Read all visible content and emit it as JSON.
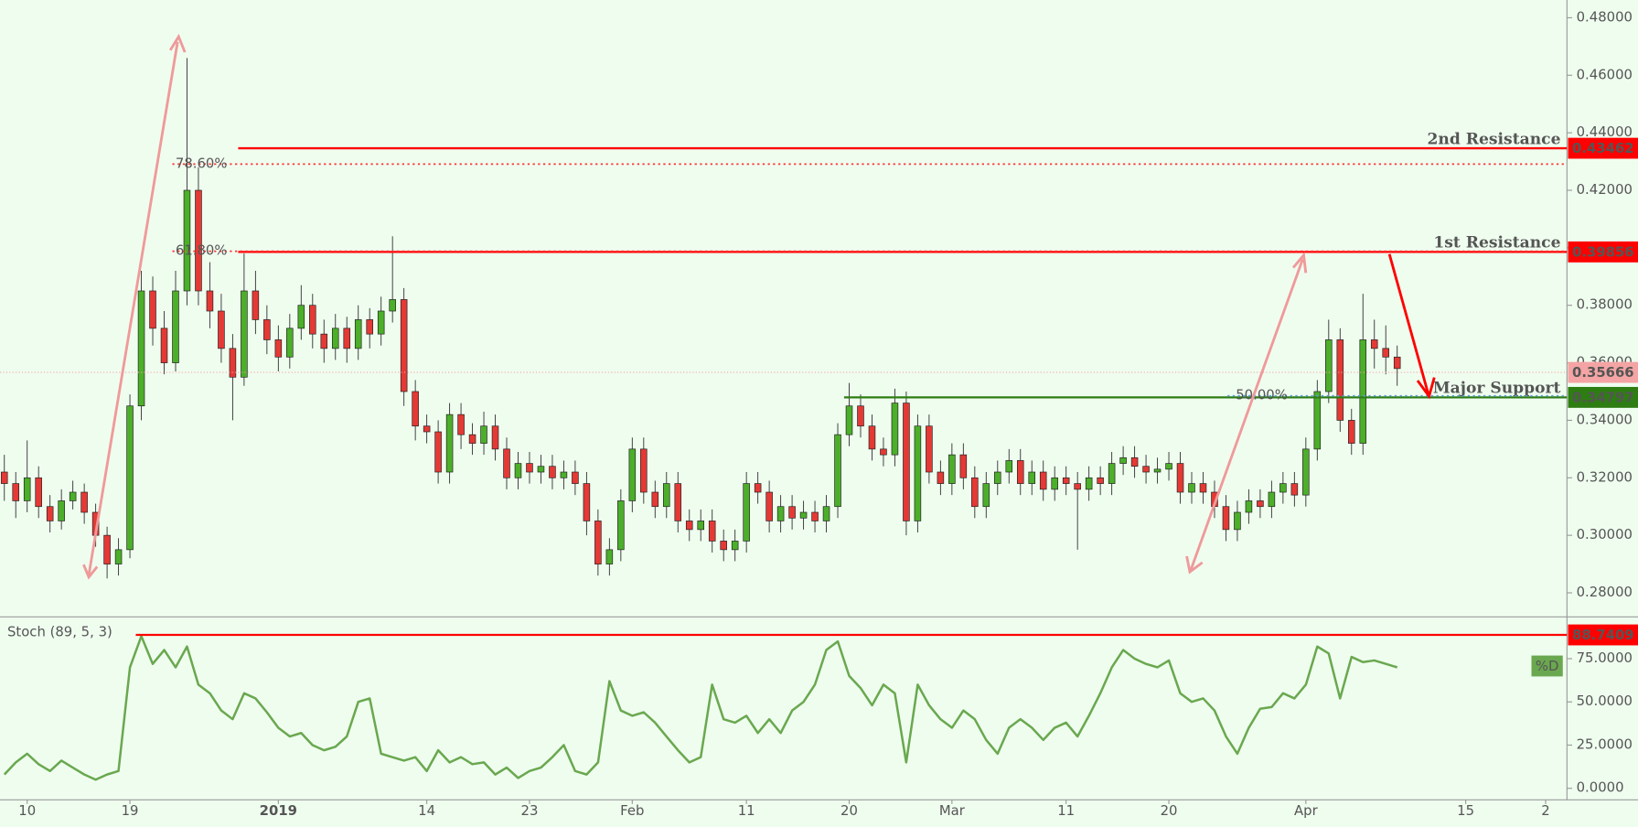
{
  "chart_data": [
    {
      "type": "candlestick",
      "x": [
        -2,
        -1,
        0,
        1,
        2,
        3,
        4,
        5,
        6,
        7,
        8,
        9,
        10,
        11,
        12,
        13,
        14,
        15,
        16,
        17,
        18,
        19,
        20,
        21,
        22,
        23,
        24,
        25,
        26,
        27,
        28,
        29,
        30,
        31,
        32,
        33,
        34,
        35,
        36,
        37,
        38,
        39,
        40,
        41,
        42,
        43,
        44,
        45,
        46,
        47,
        48,
        49,
        50,
        51,
        52,
        53,
        54,
        55,
        56,
        57,
        58,
        59,
        60,
        61,
        62,
        63,
        64,
        65,
        66,
        67,
        68,
        69,
        70,
        71,
        72,
        73,
        74,
        75,
        76,
        77,
        78,
        79,
        80,
        81,
        82,
        83,
        84,
        85,
        86,
        87,
        88,
        89,
        90,
        91,
        92,
        93,
        94,
        95,
        96,
        97,
        98,
        99,
        100,
        101,
        102,
        103,
        104,
        105,
        106,
        107,
        108,
        109,
        110,
        111,
        112,
        113,
        114,
        115,
        116,
        117,
        118,
        119,
        120
      ],
      "candles": [
        [
          0.322,
          0.328,
          0.312,
          0.318
        ],
        [
          0.318,
          0.322,
          0.306,
          0.312
        ],
        [
          0.312,
          0.333,
          0.308,
          0.32
        ],
        [
          0.32,
          0.324,
          0.306,
          0.31
        ],
        [
          0.31,
          0.314,
          0.301,
          0.305
        ],
        [
          0.305,
          0.316,
          0.302,
          0.312
        ],
        [
          0.312,
          0.319,
          0.309,
          0.315
        ],
        [
          0.315,
          0.318,
          0.304,
          0.308
        ],
        [
          0.308,
          0.311,
          0.296,
          0.3
        ],
        [
          0.3,
          0.303,
          0.285,
          0.29
        ],
        [
          0.29,
          0.299,
          0.286,
          0.295
        ],
        [
          0.295,
          0.349,
          0.292,
          0.345
        ],
        [
          0.345,
          0.392,
          0.34,
          0.385
        ],
        [
          0.385,
          0.39,
          0.366,
          0.372
        ],
        [
          0.372,
          0.378,
          0.356,
          0.36
        ],
        [
          0.36,
          0.392,
          0.357,
          0.385
        ],
        [
          0.385,
          0.466,
          0.38,
          0.42
        ],
        [
          0.42,
          0.428,
          0.38,
          0.385
        ],
        [
          0.385,
          0.395,
          0.372,
          0.378
        ],
        [
          0.378,
          0.384,
          0.36,
          0.365
        ],
        [
          0.365,
          0.37,
          0.34,
          0.355
        ],
        [
          0.355,
          0.398,
          0.352,
          0.385
        ],
        [
          0.385,
          0.392,
          0.37,
          0.375
        ],
        [
          0.375,
          0.38,
          0.363,
          0.368
        ],
        [
          0.368,
          0.373,
          0.357,
          0.362
        ],
        [
          0.362,
          0.377,
          0.358,
          0.372
        ],
        [
          0.372,
          0.387,
          0.368,
          0.38
        ],
        [
          0.38,
          0.384,
          0.365,
          0.37
        ],
        [
          0.37,
          0.375,
          0.36,
          0.365
        ],
        [
          0.365,
          0.377,
          0.361,
          0.372
        ],
        [
          0.372,
          0.376,
          0.36,
          0.365
        ],
        [
          0.365,
          0.38,
          0.361,
          0.375
        ],
        [
          0.375,
          0.379,
          0.365,
          0.37
        ],
        [
          0.37,
          0.383,
          0.366,
          0.378
        ],
        [
          0.378,
          0.404,
          0.374,
          0.382
        ],
        [
          0.382,
          0.386,
          0.345,
          0.35
        ],
        [
          0.35,
          0.354,
          0.333,
          0.338
        ],
        [
          0.338,
          0.342,
          0.332,
          0.336
        ],
        [
          0.336,
          0.34,
          0.318,
          0.322
        ],
        [
          0.322,
          0.346,
          0.318,
          0.342
        ],
        [
          0.342,
          0.346,
          0.33,
          0.335
        ],
        [
          0.335,
          0.339,
          0.328,
          0.332
        ],
        [
          0.332,
          0.343,
          0.328,
          0.338
        ],
        [
          0.338,
          0.342,
          0.326,
          0.33
        ],
        [
          0.33,
          0.334,
          0.316,
          0.32
        ],
        [
          0.32,
          0.329,
          0.316,
          0.325
        ],
        [
          0.325,
          0.329,
          0.318,
          0.322
        ],
        [
          0.322,
          0.328,
          0.318,
          0.324
        ],
        [
          0.324,
          0.328,
          0.316,
          0.32
        ],
        [
          0.32,
          0.326,
          0.316,
          0.322
        ],
        [
          0.322,
          0.326,
          0.314,
          0.318
        ],
        [
          0.318,
          0.322,
          0.3,
          0.305
        ],
        [
          0.305,
          0.309,
          0.286,
          0.29
        ],
        [
          0.29,
          0.299,
          0.286,
          0.295
        ],
        [
          0.295,
          0.316,
          0.291,
          0.312
        ],
        [
          0.312,
          0.334,
          0.308,
          0.33
        ],
        [
          0.33,
          0.334,
          0.311,
          0.315
        ],
        [
          0.315,
          0.319,
          0.306,
          0.31
        ],
        [
          0.31,
          0.322,
          0.306,
          0.318
        ],
        [
          0.318,
          0.322,
          0.301,
          0.305
        ],
        [
          0.305,
          0.309,
          0.298,
          0.302
        ],
        [
          0.302,
          0.309,
          0.298,
          0.305
        ],
        [
          0.305,
          0.309,
          0.294,
          0.298
        ],
        [
          0.298,
          0.302,
          0.291,
          0.295
        ],
        [
          0.295,
          0.302,
          0.291,
          0.298
        ],
        [
          0.298,
          0.322,
          0.294,
          0.318
        ],
        [
          0.318,
          0.322,
          0.311,
          0.315
        ],
        [
          0.315,
          0.319,
          0.301,
          0.305
        ],
        [
          0.305,
          0.314,
          0.301,
          0.31
        ],
        [
          0.31,
          0.314,
          0.302,
          0.306
        ],
        [
          0.306,
          0.312,
          0.302,
          0.308
        ],
        [
          0.308,
          0.312,
          0.301,
          0.305
        ],
        [
          0.305,
          0.314,
          0.301,
          0.31
        ],
        [
          0.31,
          0.339,
          0.306,
          0.335
        ],
        [
          0.335,
          0.353,
          0.331,
          0.345
        ],
        [
          0.345,
          0.349,
          0.334,
          0.338
        ],
        [
          0.338,
          0.342,
          0.326,
          0.33
        ],
        [
          0.33,
          0.334,
          0.324,
          0.328
        ],
        [
          0.328,
          0.351,
          0.324,
          0.346
        ],
        [
          0.346,
          0.35,
          0.3,
          0.305
        ],
        [
          0.305,
          0.342,
          0.301,
          0.338
        ],
        [
          0.338,
          0.342,
          0.318,
          0.322
        ],
        [
          0.322,
          0.326,
          0.314,
          0.318
        ],
        [
          0.318,
          0.332,
          0.314,
          0.328
        ],
        [
          0.328,
          0.332,
          0.316,
          0.32
        ],
        [
          0.32,
          0.324,
          0.306,
          0.31
        ],
        [
          0.31,
          0.322,
          0.306,
          0.318
        ],
        [
          0.318,
          0.326,
          0.314,
          0.322
        ],
        [
          0.322,
          0.33,
          0.318,
          0.326
        ],
        [
          0.326,
          0.33,
          0.314,
          0.318
        ],
        [
          0.318,
          0.326,
          0.314,
          0.322
        ],
        [
          0.322,
          0.326,
          0.312,
          0.316
        ],
        [
          0.316,
          0.324,
          0.312,
          0.32
        ],
        [
          0.32,
          0.324,
          0.314,
          0.318
        ],
        [
          0.318,
          0.322,
          0.295,
          0.316
        ],
        [
          0.316,
          0.324,
          0.312,
          0.32
        ],
        [
          0.32,
          0.324,
          0.314,
          0.318
        ],
        [
          0.318,
          0.329,
          0.314,
          0.325
        ],
        [
          0.325,
          0.331,
          0.321,
          0.327
        ],
        [
          0.327,
          0.331,
          0.32,
          0.324
        ],
        [
          0.324,
          0.328,
          0.318,
          0.322
        ],
        [
          0.322,
          0.327,
          0.318,
          0.323
        ],
        [
          0.323,
          0.329,
          0.319,
          0.325
        ],
        [
          0.325,
          0.329,
          0.311,
          0.315
        ],
        [
          0.315,
          0.322,
          0.311,
          0.318
        ],
        [
          0.318,
          0.322,
          0.311,
          0.315
        ],
        [
          0.315,
          0.319,
          0.306,
          0.31
        ],
        [
          0.31,
          0.314,
          0.298,
          0.302
        ],
        [
          0.302,
          0.312,
          0.298,
          0.308
        ],
        [
          0.308,
          0.316,
          0.304,
          0.312
        ],
        [
          0.312,
          0.316,
          0.306,
          0.31
        ],
        [
          0.31,
          0.319,
          0.306,
          0.315
        ],
        [
          0.315,
          0.322,
          0.311,
          0.318
        ],
        [
          0.318,
          0.322,
          0.31,
          0.314
        ],
        [
          0.314,
          0.334,
          0.31,
          0.33
        ],
        [
          0.33,
          0.354,
          0.326,
          0.35
        ],
        [
          0.35,
          0.375,
          0.346,
          0.368
        ],
        [
          0.368,
          0.372,
          0.336,
          0.34
        ],
        [
          0.34,
          0.344,
          0.328,
          0.332
        ],
        [
          0.332,
          0.384,
          0.328,
          0.368
        ],
        [
          0.368,
          0.375,
          0.358,
          0.365
        ],
        [
          0.365,
          0.373,
          0.356,
          0.362
        ],
        [
          0.362,
          0.366,
          0.352,
          0.358
        ]
      ],
      "up_color": "#4caf2a",
      "down_color": "#e53935",
      "xlim": [
        -2.38,
        134.87
      ],
      "ylim": [
        0.27164,
        0.48618
      ],
      "yticks": [
        {
          "value": 0.28,
          "label": "0.28000"
        },
        {
          "value": 0.3,
          "label": "0.30000"
        },
        {
          "value": 0.32,
          "label": "0.32000"
        },
        {
          "value": 0.34,
          "label": "0.34000"
        },
        {
          "value": 0.36,
          "label": "0.36000"
        },
        {
          "value": 0.38,
          "label": "0.38000"
        },
        {
          "value": 0.4,
          "label": "0.40000"
        },
        {
          "value": 0.42,
          "label": "0.42000"
        },
        {
          "value": 0.44,
          "label": "0.44000"
        },
        {
          "value": 0.46,
          "label": "0.46000"
        },
        {
          "value": 0.48,
          "label": "0.48000"
        }
      ],
      "levels": [
        {
          "label": "2nd Resistance",
          "value": 0.43462,
          "color": "#ff0000"
        },
        {
          "label": "1st Resistance",
          "value": 0.39856,
          "color": "#ff0000"
        },
        {
          "label": "Major Support",
          "value": 0.34797,
          "color": "#2e7d12"
        }
      ],
      "fib_levels": [
        {
          "label": "78.60%",
          "value": 0.4291,
          "color": "#ff3333"
        },
        {
          "label": "61.80%",
          "value": 0.3988,
          "color": "#ff3333"
        },
        {
          "label": "50.00%",
          "value": 0.3485,
          "color": "#5b9bd5"
        }
      ],
      "last": {
        "value": 0.35666,
        "color": "#f4a4a4"
      }
    },
    {
      "type": "line",
      "name": "Stoch (89, 5, 3)",
      "legend": "%D",
      "color": "#6aa84f",
      "x": [
        -2,
        -1,
        0,
        1,
        2,
        3,
        4,
        5,
        6,
        7,
        8,
        9,
        10,
        11,
        12,
        13,
        14,
        15,
        16,
        17,
        18,
        19,
        20,
        21,
        22,
        23,
        24,
        25,
        26,
        27,
        28,
        29,
        30,
        31,
        32,
        33,
        34,
        35,
        36,
        37,
        38,
        39,
        40,
        41,
        42,
        43,
        44,
        45,
        46,
        47,
        48,
        49,
        50,
        51,
        52,
        53,
        54,
        55,
        56,
        57,
        58,
        59,
        60,
        61,
        62,
        63,
        64,
        65,
        66,
        67,
        68,
        69,
        70,
        71,
        72,
        73,
        74,
        75,
        76,
        77,
        78,
        79,
        80,
        81,
        82,
        83,
        84,
        85,
        86,
        87,
        88,
        89,
        90,
        91,
        92,
        93,
        94,
        95,
        96,
        97,
        98,
        99,
        100,
        101,
        102,
        103,
        104,
        105,
        106,
        107,
        108,
        109,
        110,
        111,
        112,
        113,
        114,
        115,
        116,
        117,
        118,
        119,
        120
      ],
      "values": [
        8,
        15,
        20,
        14,
        10,
        16,
        12,
        8,
        5,
        8,
        10,
        70,
        88,
        72,
        80,
        70,
        82,
        60,
        55,
        45,
        40,
        55,
        52,
        44,
        35,
        30,
        32,
        25,
        22,
        24,
        30,
        50,
        52,
        20,
        18,
        16,
        18,
        10,
        22,
        15,
        18,
        14,
        15,
        8,
        12,
        6,
        10,
        12,
        18,
        25,
        10,
        8,
        15,
        62,
        45,
        42,
        44,
        38,
        30,
        22,
        15,
        18,
        60,
        40,
        38,
        42,
        32,
        40,
        32,
        45,
        50,
        60,
        80,
        85,
        65,
        58,
        48,
        60,
        55,
        15,
        60,
        48,
        40,
        35,
        45,
        40,
        28,
        20,
        35,
        40,
        35,
        28,
        35,
        38,
        30,
        42,
        55,
        70,
        80,
        75,
        72,
        70,
        74,
        55,
        50,
        52,
        45,
        30,
        20,
        35,
        46,
        47,
        55,
        52,
        60,
        82,
        78,
        52,
        76,
        73,
        74,
        72,
        70
      ],
      "level": {
        "value": 88.7409,
        "color": "#ff0000"
      },
      "xlim": [
        -2.38,
        134.87
      ],
      "ylim": [
        -6.65,
        99.19
      ],
      "yticks": [
        {
          "value": 0,
          "label": "0.0000"
        },
        {
          "value": 25,
          "label": "25.0000"
        },
        {
          "value": 50,
          "label": "50.0000"
        },
        {
          "value": 75,
          "label": "75.0000"
        }
      ],
      "xticks": [
        {
          "value": 0,
          "label": "10"
        },
        {
          "value": 9,
          "label": "19"
        },
        {
          "value": 22,
          "label": "2019"
        },
        {
          "value": 35,
          "label": "14"
        },
        {
          "value": 44,
          "label": "23"
        },
        {
          "value": 53,
          "label": "Feb"
        },
        {
          "value": 63,
          "label": "11"
        },
        {
          "value": 72,
          "label": "20"
        },
        {
          "value": 81,
          "label": "Mar"
        },
        {
          "value": 91,
          "label": "11"
        },
        {
          "value": 100,
          "label": "20"
        },
        {
          "value": 112,
          "label": "Apr"
        },
        {
          "value": 126,
          "label": "15"
        },
        {
          "value": 133,
          "label": "2"
        }
      ]
    }
  ]
}
